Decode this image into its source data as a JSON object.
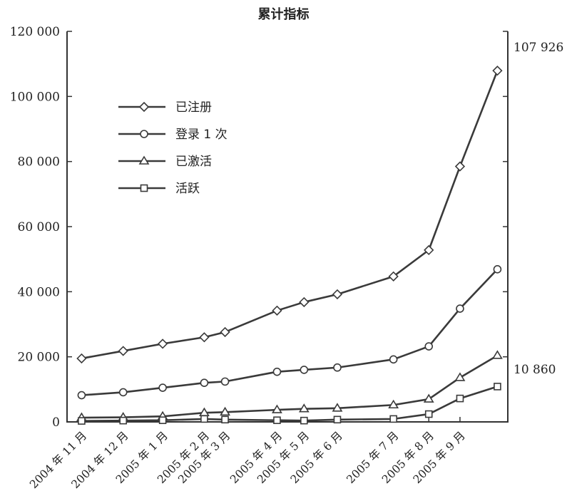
{
  "chart_data": {
    "type": "line",
    "title": "累计指标",
    "xlabel": "",
    "ylabel": "",
    "ylim": [
      0,
      120000
    ],
    "y_ticks": [
      "0",
      "20 000",
      "40 000",
      "60 000",
      "80 000",
      "100 000",
      "120 000"
    ],
    "categories": [
      "2004年11月",
      "2004年12月",
      "2005年1月",
      "2005年2月",
      "2005年3月",
      "2005年4月",
      "2005年5月",
      "2005年6月",
      "2005年7月",
      "2005年8月",
      "2005年9月"
    ],
    "x_tick_labels": [
      "2004 年 11 月",
      "2004 年 12 月",
      "2005 年 1 月",
      "2005 年 2 月",
      "2005 年 3 月",
      "2005 年 4 月",
      "2005 年 5 月",
      "2005 年 6 月",
      "2005 年 7 月",
      "2005 年 8 月",
      "2005 年 9 月"
    ],
    "x_values": [
      0.35,
      1.35,
      2.3,
      3.3,
      3.8,
      5.05,
      5.7,
      6.5,
      7.85,
      8.7,
      9.45
    ],
    "xlim": [
      0,
      10
    ],
    "series": [
      {
        "name": "已注册",
        "marker": "diamond",
        "values": [
          19500,
          21800,
          24000,
          26000,
          27600,
          34200,
          36800,
          39200,
          44700,
          52800,
          78500,
          107926
        ],
        "x_values": [
          0.35,
          1.35,
          2.3,
          3.3,
          3.8,
          5.05,
          5.7,
          6.5,
          7.85,
          8.7,
          9.45,
          10.35
        ]
      },
      {
        "name": "登录 1 次",
        "marker": "circle",
        "values": [
          8200,
          9100,
          10500,
          12000,
          12400,
          15400,
          16000,
          16700,
          19200,
          23200,
          34800,
          46900
        ],
        "x_values": [
          0.35,
          1.35,
          2.3,
          3.3,
          3.8,
          5.05,
          5.7,
          6.5,
          7.85,
          8.7,
          9.45,
          10.35
        ]
      },
      {
        "name": "已激活",
        "marker": "triangle",
        "values": [
          1300,
          1400,
          1700,
          2800,
          3000,
          3700,
          4000,
          4200,
          5200,
          7000,
          13600,
          20400
        ],
        "x_values": [
          0.35,
          1.35,
          2.3,
          3.3,
          3.8,
          5.05,
          5.7,
          6.5,
          7.85,
          8.7,
          9.45,
          10.35
        ]
      },
      {
        "name": "活跃",
        "marker": "square",
        "values": [
          300,
          400,
          500,
          900,
          700,
          500,
          400,
          700,
          900,
          2400,
          7200,
          10860
        ],
        "x_values": [
          0.35,
          1.35,
          2.3,
          3.3,
          3.8,
          5.05,
          5.7,
          6.5,
          7.85,
          8.7,
          9.45,
          10.35
        ]
      }
    ],
    "annotations": [
      {
        "text": "107 926",
        "value": 107926
      },
      {
        "text": "10 860",
        "value": 10860
      }
    ],
    "legend_position": "top-left",
    "grid": false
  },
  "colors": {
    "line": "#3a3a3a",
    "marker_fill": "#ffffff",
    "axis": "#333333"
  }
}
